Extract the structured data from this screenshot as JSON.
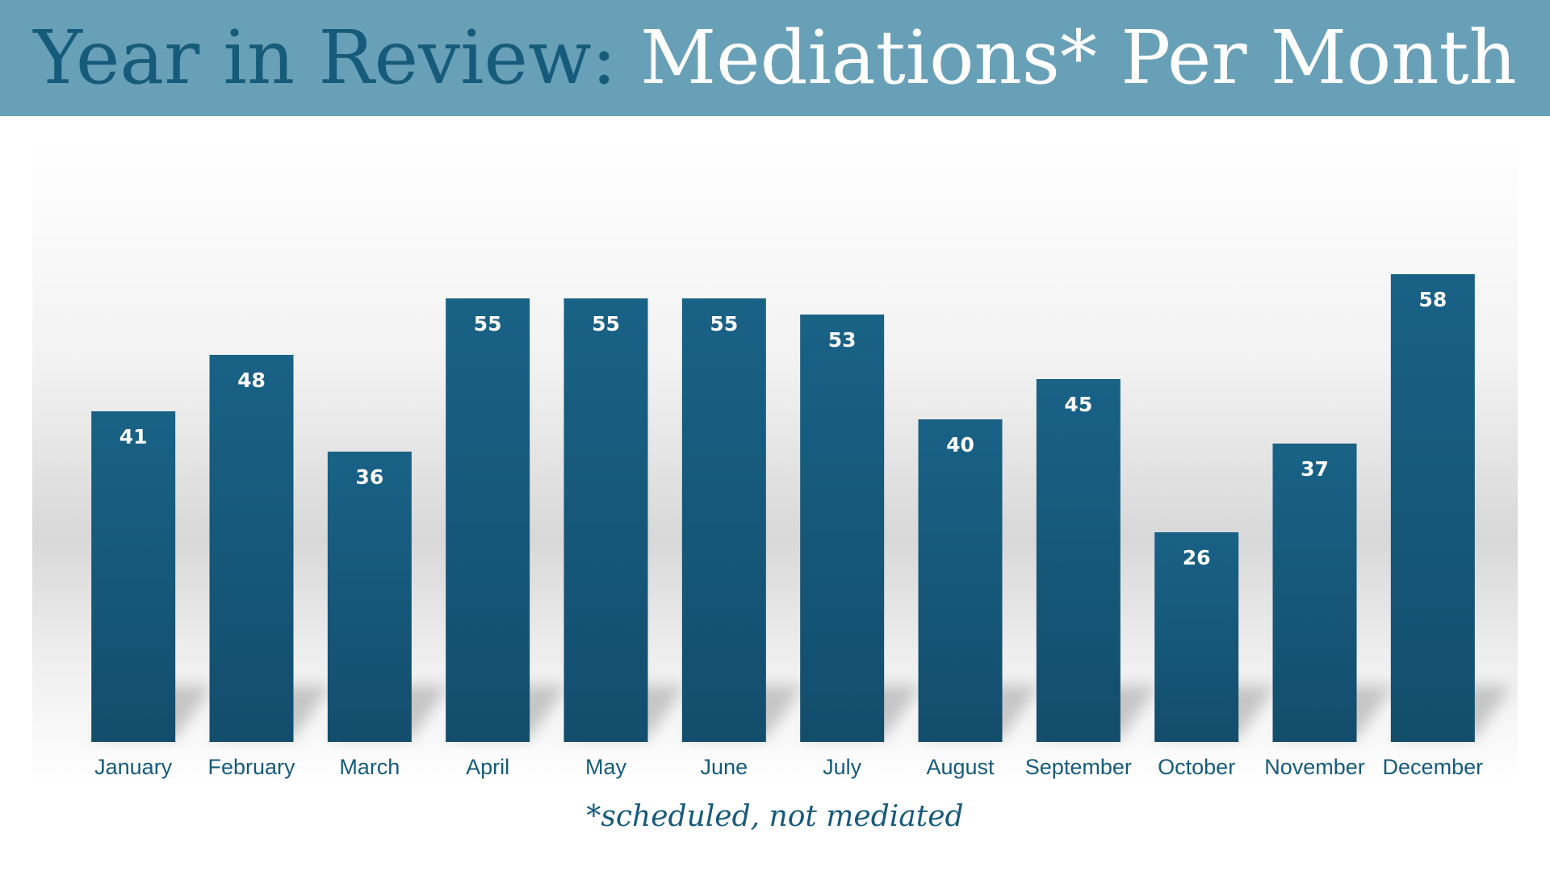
{
  "header": {
    "title_part1": "Year in Review:",
    "title_part2": "Mediations* Per Month"
  },
  "footnote": "*scheduled, not mediated",
  "colors": {
    "banner": "#68a0b7",
    "title_dark": "#165b7a",
    "bar_top": "#196286",
    "bar_bottom": "#134d6c",
    "data_label": "#ffffff",
    "axis_label": "#165b7a"
  },
  "chart_data": {
    "type": "bar",
    "categories": [
      "January",
      "February",
      "March",
      "April",
      "May",
      "June",
      "July",
      "August",
      "September",
      "October",
      "November",
      "December"
    ],
    "values": [
      41,
      48,
      36,
      55,
      55,
      55,
      53,
      40,
      45,
      26,
      37,
      58
    ],
    "title": "",
    "xlabel": "",
    "ylabel": "",
    "ylim": [
      0,
      60
    ],
    "grid": false,
    "legend": "none",
    "data_labels": true
  }
}
